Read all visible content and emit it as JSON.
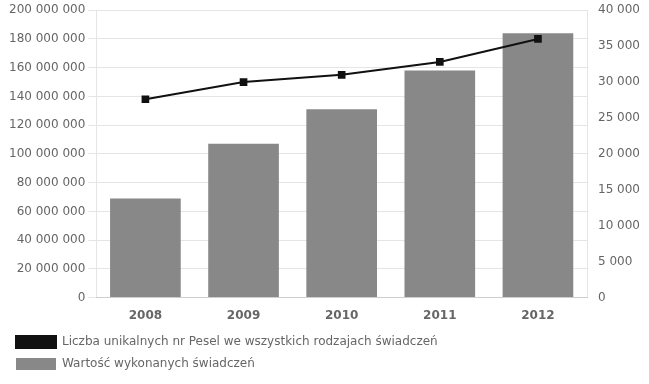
{
  "chart_data": {
    "type": "bar",
    "categories": [
      "2008",
      "2009",
      "2010",
      "2011",
      "2012"
    ],
    "series": [
      {
        "name": "Wartość wykonanych świadczeń",
        "color": "#888888",
        "values": [
          69000000,
          107000000,
          131000000,
          158000000,
          184000000
        ]
      },
      {
        "name": "Liczba unikalnych nr Pesel we wszystkich rodzajach świadczeń",
        "color": "#111111",
        "values": [
          27600,
          30000,
          31000,
          32800,
          36000
        ],
        "type": "line",
        "axis": "y2",
        "marker": "square",
        "line_style": "solid"
      }
    ],
    "ylim": [
      0,
      200000000
    ],
    "yticks": [
      0,
      {
        "value": 20000000,
        "label": "20 000 000"
      },
      {
        "value": 40000000,
        "label": "40 000 000"
      },
      {
        "value": 60000000,
        "label": "60 000 000"
      },
      {
        "value": 80000000,
        "label": "80 000 000"
      },
      {
        "value": 100000000,
        "label": "100 000 000"
      },
      {
        "value": 120000000,
        "label": "120 000 000"
      },
      {
        "value": 140000000,
        "label": "140 000 000"
      },
      {
        "value": 160000000,
        "label": "160 000 000"
      },
      {
        "value": 180000000,
        "label": "180 000 000"
      },
      {
        "value": 200000000,
        "label": "200 000 000"
      }
    ],
    "y2lim": [
      0,
      40000
    ],
    "y2ticks": [
      0,
      {
        "value": 5000,
        "label": "5 000"
      },
      {
        "value": 10000,
        "label": "10 000"
      },
      {
        "value": 15000,
        "label": "15 000"
      },
      {
        "value": 20000,
        "label": "20 000"
      },
      {
        "value": 25000,
        "label": "25 000"
      },
      {
        "value": 30000,
        "label": "30 000"
      },
      {
        "value": 35000,
        "label": "35 000"
      },
      {
        "value": 40000,
        "label": "40 000"
      }
    ],
    "grid": true,
    "legend": "bottom"
  }
}
